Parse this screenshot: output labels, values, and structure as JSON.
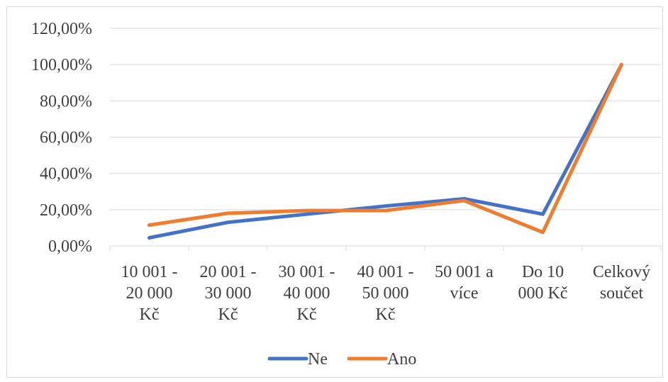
{
  "chart_data": {
    "type": "line",
    "title": "",
    "xlabel": "",
    "ylabel": "",
    "ylim": [
      0,
      120
    ],
    "y_ticks": [
      "0,00%",
      "20,00%",
      "40,00%",
      "60,00%",
      "80,00%",
      "100,00%",
      "120,00%"
    ],
    "categories": [
      [
        "10 001 -",
        "20 000",
        "Kč"
      ],
      [
        "20 001 -",
        "30 000",
        "Kč"
      ],
      [
        "30 001 -",
        "40 000",
        "Kč"
      ],
      [
        "40 001 -",
        "50 000",
        "Kč"
      ],
      [
        "50 001 a",
        "více"
      ],
      [
        "Do 10",
        "000 Kč"
      ],
      [
        "Celkový",
        "součet"
      ]
    ],
    "series": [
      {
        "name": "Ne",
        "color": "#4472c4",
        "values": [
          4.5,
          13,
          17.5,
          22,
          26,
          17.5,
          100
        ]
      },
      {
        "name": "Ano",
        "color": "#ed7d31",
        "values": [
          11.5,
          18,
          19.5,
          19.5,
          25,
          7.5,
          100
        ]
      }
    ],
    "grid": true,
    "legend_position": "bottom"
  }
}
